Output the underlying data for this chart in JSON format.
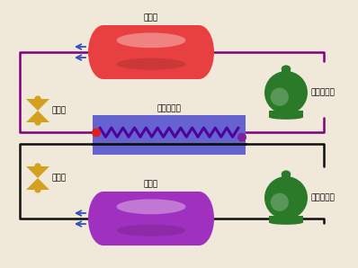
{
  "bg_color": "#f0e8d8",
  "condenser_color": "#e84040",
  "evaporator_color": "#a030c0",
  "cascade_color": "#5858d0",
  "compressor_color": "#2a7a2a",
  "valve_color": "#d4a020",
  "pipe_color_top": "#800080",
  "pipe_color_bot": "#101010",
  "zigzag_color": "#5000a0",
  "label_condenser": "冷凝器",
  "label_evaporator": "蕲发器",
  "label_cascade": "冷凝蕲发器",
  "label_hi_comp": "高温压缩机",
  "label_lo_comp": "低温压缩机",
  "label_valve": "节流阀",
  "fan_color": "#3050c0",
  "dot_red": "#dd2020",
  "dot_purple": "#8020a0"
}
